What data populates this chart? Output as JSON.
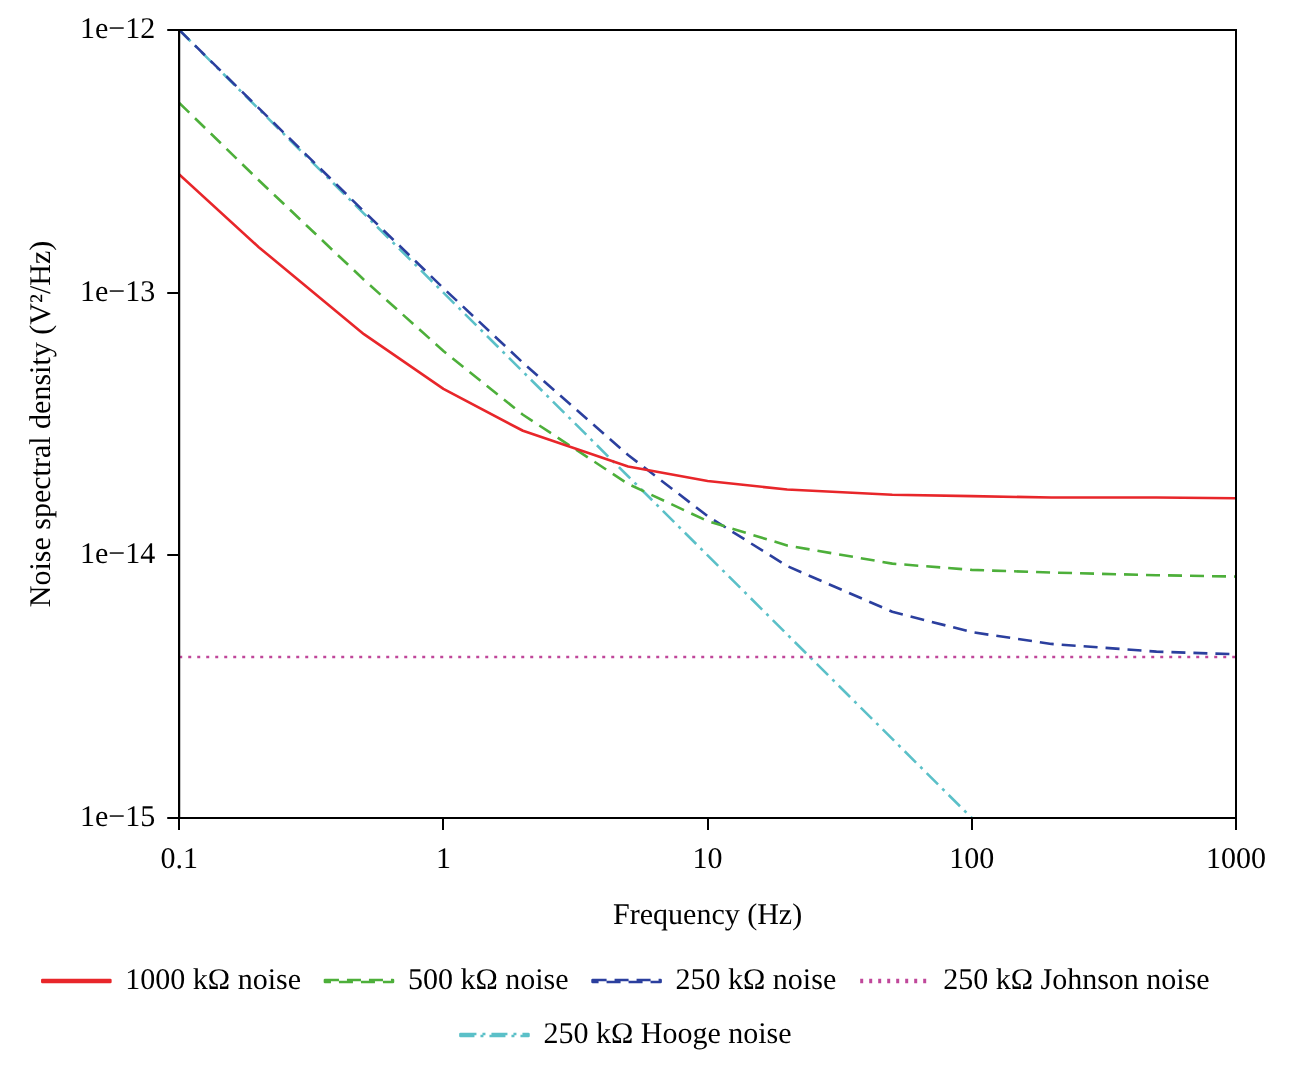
{
  "chart_data": {
    "type": "line",
    "xlabel": "Frequency (Hz)",
    "ylabel": "Noise spectral density (V²/Hz)",
    "log": "xy",
    "legend": "bottom",
    "marker": "none",
    "x": [
      0.1,
      0.2,
      0.5,
      1,
      2,
      5,
      10,
      20,
      50,
      100,
      200,
      500,
      1000
    ],
    "xlim": [
      0.1,
      1000
    ],
    "xticks": [
      0.1,
      1,
      10,
      100,
      1000
    ],
    "ylim": [
      1e-15,
      1e-12
    ],
    "yticks": [
      {
        "value": 1e-15,
        "label": "1e−15"
      },
      {
        "value": 1e-14,
        "label": "1e−14"
      },
      {
        "value": 1e-13,
        "label": "1e−13"
      },
      {
        "value": 1e-12,
        "label": "1e−12"
      }
    ],
    "series": [
      {
        "name": "1000 kΩ noise",
        "color": "#e8262a",
        "line_style": "solid",
        "values": [
          2.82e-13,
          1.49e-13,
          6.95e-14,
          4.3e-14,
          2.98e-14,
          2.18e-14,
          1.92e-14,
          1.78e-14,
          1.7e-14,
          1.68e-14,
          1.66e-14,
          1.66e-14,
          1.65e-14
        ]
      },
      {
        "name": "500 kΩ noise",
        "color": "#4daf3a",
        "line_style": "dashed",
        "values": [
          5.28e-13,
          2.68e-13,
          1.12e-13,
          6e-14,
          3.43e-14,
          1.87e-14,
          1.35e-14,
          1.09e-14,
          9.3e-15,
          8.8e-15,
          8.6e-15,
          8.4e-15,
          8.3e-15
        ]
      },
      {
        "name": "250 kΩ noise",
        "color": "#2b3f9e",
        "line_style": "dashed",
        "values": [
          1e-12,
          5.04e-13,
          2.04e-13,
          1.04e-13,
          5.41e-14,
          2.41e-14,
          1.41e-14,
          9.1e-15,
          6.1e-15,
          5.1e-15,
          4.6e-15,
          4.3e-15,
          4.2e-15
        ]
      },
      {
        "name": "250 kΩ Johnson noise",
        "color": "#c0479a",
        "line_style": "dotted",
        "values": [
          4.1e-15,
          4.1e-15,
          4.1e-15,
          4.1e-15,
          4.1e-15,
          4.1e-15,
          4.1e-15,
          4.1e-15,
          4.1e-15,
          4.1e-15,
          4.1e-15,
          4.1e-15,
          4.1e-15
        ]
      },
      {
        "name": "250 kΩ Hooge noise",
        "color": "#5bc0c8",
        "line_style": "dashdot",
        "values": [
          1e-12,
          5e-13,
          2e-13,
          1e-13,
          5e-14,
          2e-14,
          1e-14,
          5e-15,
          2e-15,
          1e-15,
          null,
          null,
          null
        ]
      }
    ]
  }
}
